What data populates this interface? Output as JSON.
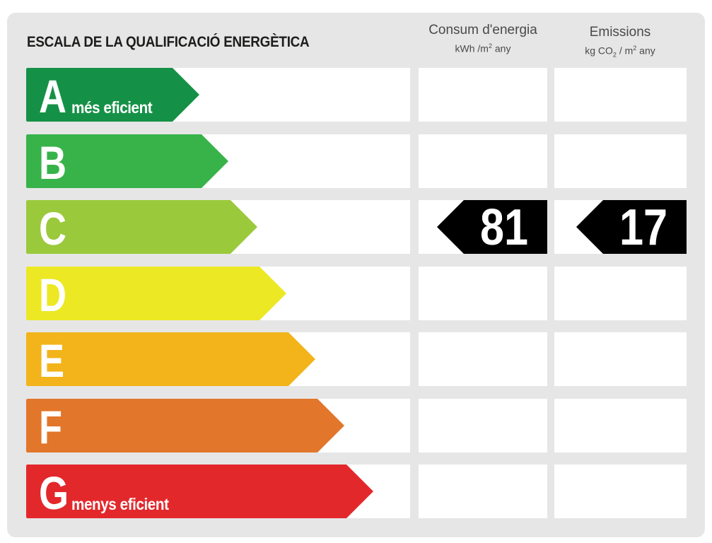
{
  "title": "ESCALA DE LA QUALIFICACIÓ ENERGÈTICA",
  "columns": {
    "energy": {
      "label": "Consum d'energia",
      "unit_prefix": "kWh /m",
      "unit_sup": "2",
      "unit_suffix": " any"
    },
    "emissions": {
      "label": "Emissions",
      "unit_prefix": "kg CO",
      "unit_sub": "2",
      "unit_mid": " / m",
      "unit_sup": "2",
      "unit_suffix": "  any"
    }
  },
  "ratings": [
    {
      "letter": "A",
      "label": "més eficient",
      "color": "#159147"
    },
    {
      "letter": "B",
      "label": "",
      "color": "#37b34a"
    },
    {
      "letter": "C",
      "label": "",
      "color": "#9bc93c"
    },
    {
      "letter": "D",
      "label": "",
      "color": "#ece824"
    },
    {
      "letter": "E",
      "label": "",
      "color": "#f2b41a"
    },
    {
      "letter": "F",
      "label": "",
      "color": "#e2762a"
    },
    {
      "letter": "G",
      "label": "menys eficient",
      "color": "#e3282c"
    }
  ],
  "result": {
    "rating": "C",
    "energy_value": "81",
    "emissions_value": "17"
  },
  "colors": {
    "panel_background": "#e6e6e7",
    "marker": "#000000"
  }
}
